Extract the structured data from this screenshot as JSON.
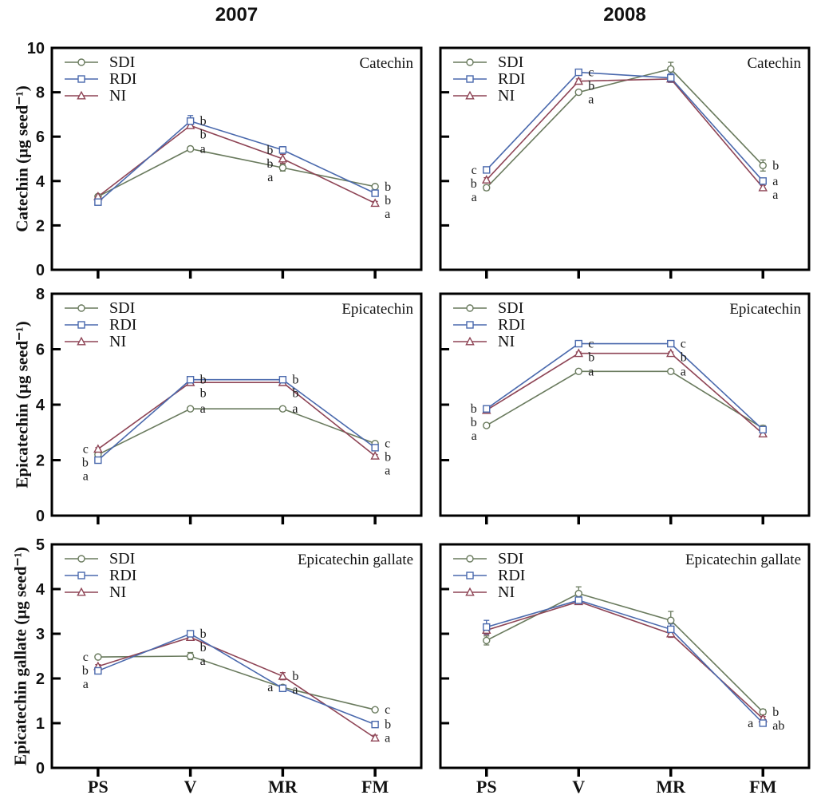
{
  "figure": {
    "column_titles": [
      "2007",
      "2008"
    ],
    "row_ylabels": [
      "Catechin (µg seed⁻¹)",
      "Epicatechin (µg seed⁻¹)",
      "Epicatechin gallate (µg seed⁻¹)"
    ],
    "categories": [
      "PS",
      "V",
      "MR",
      "FM"
    ],
    "legend_entries": [
      "SDI",
      "RDI",
      "NI"
    ]
  },
  "colors": {
    "SDI": "#697a5d",
    "RDI": "#4a69ad",
    "NI": "#8e4455",
    "axis": "#000000",
    "letter": "#1a1a1a"
  },
  "chart_data": [
    {
      "type": "line",
      "year": "2007",
      "panel_label": "Catechin",
      "row": 0,
      "col": 0,
      "ylim": [
        0,
        10
      ],
      "yticks": [
        0,
        2,
        4,
        6,
        8,
        10
      ],
      "show_ytick_labels": true,
      "show_xtick_labels": false,
      "categories": [
        "PS",
        "V",
        "MR",
        "FM"
      ],
      "series": [
        {
          "name": "SDI",
          "marker": "circle",
          "values": [
            3.3,
            5.45,
            4.6,
            3.75
          ],
          "errors": [
            0.05,
            0.08,
            0.15,
            0.08
          ],
          "letters": [
            "",
            "a",
            "a",
            "b"
          ],
          "letter_sides": [
            "",
            "right",
            "left",
            "right"
          ]
        },
        {
          "name": "RDI",
          "marker": "square",
          "values": [
            3.05,
            6.7,
            5.4,
            3.45
          ],
          "errors": [
            0.08,
            0.25,
            0.15,
            0.08
          ],
          "letters": [
            "",
            "b",
            "b",
            "b"
          ],
          "letter_sides": [
            "",
            "right",
            "left",
            "right"
          ]
        },
        {
          "name": "NI",
          "marker": "triangle",
          "values": [
            3.3,
            6.5,
            5.0,
            3.0
          ],
          "errors": [
            0.05,
            0.12,
            0.2,
            0.08
          ],
          "letters": [
            "",
            "b",
            "b",
            "a"
          ],
          "letter_sides": [
            "",
            "right",
            "left",
            "right"
          ]
        }
      ]
    },
    {
      "type": "line",
      "year": "2008",
      "panel_label": "Catechin",
      "row": 0,
      "col": 1,
      "ylim": [
        0,
        10
      ],
      "yticks": [
        0,
        2,
        4,
        6,
        8,
        10
      ],
      "show_ytick_labels": false,
      "show_xtick_labels": false,
      "categories": [
        "PS",
        "V",
        "MR",
        "FM"
      ],
      "series": [
        {
          "name": "SDI",
          "marker": "circle",
          "values": [
            3.7,
            8.0,
            9.05,
            4.7
          ],
          "errors": [
            0.12,
            0.1,
            0.3,
            0.25
          ],
          "letters": [
            "a",
            "a",
            "",
            "b"
          ],
          "letter_sides": [
            "left",
            "right",
            "",
            "right"
          ]
        },
        {
          "name": "RDI",
          "marker": "square",
          "values": [
            4.5,
            8.9,
            8.65,
            4.0
          ],
          "errors": [
            0.1,
            0.1,
            0.2,
            0.12
          ],
          "letters": [
            "c",
            "c",
            "",
            "a"
          ],
          "letter_sides": [
            "left",
            "right",
            "",
            "right"
          ]
        },
        {
          "name": "NI",
          "marker": "triangle",
          "values": [
            4.05,
            8.5,
            8.6,
            3.7
          ],
          "errors": [
            0.1,
            0.1,
            0.15,
            0.1
          ],
          "letters": [
            "b",
            "b",
            "",
            "a"
          ],
          "letter_sides": [
            "left",
            "right",
            "",
            "right"
          ]
        }
      ]
    },
    {
      "type": "line",
      "year": "2007",
      "panel_label": "Epicatechin",
      "row": 1,
      "col": 0,
      "ylim": [
        0,
        8
      ],
      "yticks": [
        0,
        2,
        4,
        6,
        8
      ],
      "show_ytick_labels": true,
      "show_xtick_labels": false,
      "categories": [
        "PS",
        "V",
        "MR",
        "FM"
      ],
      "series": [
        {
          "name": "SDI",
          "marker": "circle",
          "values": [
            2.2,
            3.85,
            3.85,
            2.6
          ],
          "errors": [
            0.05,
            0.05,
            0.05,
            0.05
          ],
          "letters": [
            "b",
            "a",
            "a",
            "c"
          ],
          "letter_sides": [
            "left",
            "right",
            "right",
            "right"
          ]
        },
        {
          "name": "RDI",
          "marker": "square",
          "values": [
            2.0,
            4.9,
            4.9,
            2.45
          ],
          "errors": [
            0.05,
            0.05,
            0.05,
            0.05
          ],
          "letters": [
            "a",
            "b",
            "b",
            "b"
          ],
          "letter_sides": [
            "left",
            "right",
            "right",
            "right"
          ]
        },
        {
          "name": "NI",
          "marker": "triangle",
          "values": [
            2.4,
            4.8,
            4.8,
            2.15
          ],
          "errors": [
            0.05,
            0.05,
            0.05,
            0.05
          ],
          "letters": [
            "c",
            "b",
            "b",
            "a"
          ],
          "letter_sides": [
            "left",
            "right",
            "right",
            "right"
          ]
        }
      ]
    },
    {
      "type": "line",
      "year": "2008",
      "panel_label": "Epicatechin",
      "row": 1,
      "col": 1,
      "ylim": [
        0,
        8
      ],
      "yticks": [
        0,
        2,
        4,
        6,
        8
      ],
      "show_ytick_labels": false,
      "show_xtick_labels": false,
      "categories": [
        "PS",
        "V",
        "MR",
        "FM"
      ],
      "series": [
        {
          "name": "SDI",
          "marker": "circle",
          "values": [
            3.25,
            5.2,
            5.2,
            3.15
          ],
          "errors": [
            0.08,
            0.05,
            0.05,
            0.1
          ],
          "letters": [
            "a",
            "a",
            "a",
            ""
          ],
          "letter_sides": [
            "left",
            "right",
            "right",
            ""
          ]
        },
        {
          "name": "RDI",
          "marker": "square",
          "values": [
            3.85,
            6.2,
            6.2,
            3.1
          ],
          "errors": [
            0.08,
            0.05,
            0.05,
            0.08
          ],
          "letters": [
            "b",
            "c",
            "c",
            ""
          ],
          "letter_sides": [
            "left",
            "right",
            "right",
            ""
          ]
        },
        {
          "name": "NI",
          "marker": "triangle",
          "values": [
            3.8,
            5.85,
            5.85,
            2.95
          ],
          "errors": [
            0.05,
            0.05,
            0.05,
            0.05
          ],
          "letters": [
            "b",
            "b",
            "b",
            ""
          ],
          "letter_sides": [
            "left",
            "right",
            "right",
            ""
          ]
        }
      ]
    },
    {
      "type": "line",
      "year": "2007",
      "panel_label": "Epicatechin gallate",
      "row": 2,
      "col": 0,
      "ylim": [
        0,
        5
      ],
      "yticks": [
        0,
        1,
        2,
        3,
        4,
        5
      ],
      "show_ytick_labels": true,
      "show_xtick_labels": true,
      "categories": [
        "PS",
        "V",
        "MR",
        "FM"
      ],
      "series": [
        {
          "name": "SDI",
          "marker": "circle",
          "values": [
            2.48,
            2.5,
            1.8,
            1.3
          ],
          "errors": [
            0.04,
            0.08,
            0.04,
            0.04
          ],
          "letters": [
            "c",
            "a",
            "a",
            "c"
          ],
          "letter_sides": [
            "left",
            "right",
            "left",
            "right"
          ]
        },
        {
          "name": "RDI",
          "marker": "square",
          "values": [
            2.17,
            3.0,
            1.78,
            0.97
          ],
          "errors": [
            0.05,
            0.06,
            0.04,
            0.04
          ],
          "letters": [
            "a",
            "b",
            "a",
            "b"
          ],
          "letter_sides": [
            "left",
            "right",
            "right",
            "right"
          ]
        },
        {
          "name": "NI",
          "marker": "triangle",
          "values": [
            2.27,
            2.92,
            2.05,
            0.67
          ],
          "errors": [
            0.04,
            0.05,
            0.08,
            0.06
          ],
          "letters": [
            "b",
            "b",
            "b",
            "a"
          ],
          "letter_sides": [
            "left",
            "right",
            "right",
            "right"
          ]
        }
      ]
    },
    {
      "type": "line",
      "year": "2008",
      "panel_label": "Epicatechin gallate",
      "row": 2,
      "col": 1,
      "ylim": [
        0,
        5
      ],
      "yticks": [
        0,
        1,
        2,
        3,
        4,
        5
      ],
      "show_ytick_labels": false,
      "show_xtick_labels": true,
      "categories": [
        "PS",
        "V",
        "MR",
        "FM"
      ],
      "series": [
        {
          "name": "SDI",
          "marker": "circle",
          "values": [
            2.85,
            3.9,
            3.3,
            1.25
          ],
          "errors": [
            0.1,
            0.15,
            0.2,
            0.06
          ],
          "letters": [
            "",
            "",
            "",
            "b"
          ],
          "letter_sides": [
            "",
            "",
            "",
            "right"
          ]
        },
        {
          "name": "RDI",
          "marker": "square",
          "values": [
            3.15,
            3.75,
            3.1,
            1.0
          ],
          "errors": [
            0.15,
            0.08,
            0.12,
            0.05
          ],
          "letters": [
            "",
            "",
            "",
            "a"
          ],
          "letter_sides": [
            "",
            "",
            "",
            "left"
          ]
        },
        {
          "name": "NI",
          "marker": "triangle",
          "values": [
            3.08,
            3.72,
            3.0,
            1.1
          ],
          "errors": [
            0.1,
            0.06,
            0.08,
            0.05
          ],
          "letters": [
            "",
            "",
            "",
            "ab"
          ],
          "letter_sides": [
            "",
            "",
            "",
            "right"
          ]
        }
      ]
    }
  ]
}
